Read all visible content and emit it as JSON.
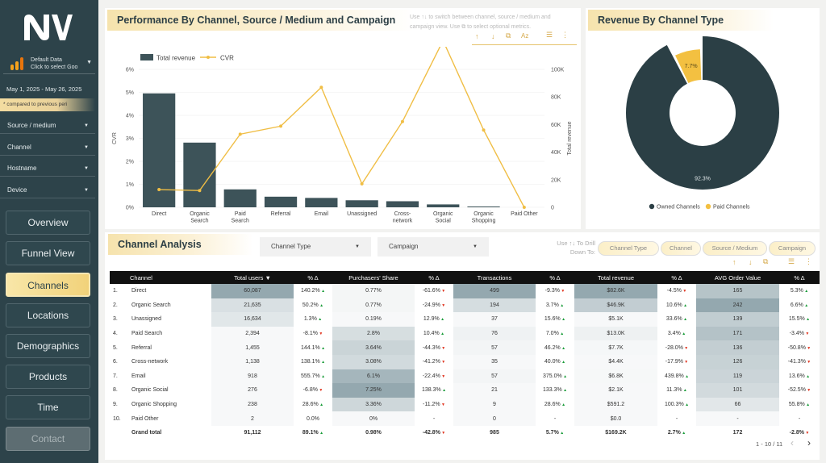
{
  "sidebar": {
    "datasource_line1": "Default Data",
    "datasource_line2": "Click to select Goo",
    "date_range": "May 1, 2025 - May 26, 2025",
    "compare_note": "* compared to previous peri",
    "filters": [
      "Source / medium",
      "Channel",
      "Hostname",
      "Device"
    ],
    "nav": [
      "Overview",
      "Funnel View",
      "Channels",
      "Locations",
      "Demographics",
      "Products",
      "Time",
      "Contact"
    ],
    "active_nav": "Channels"
  },
  "perf": {
    "title": "Performance By Channel, Source / Medium and Campaign",
    "hint_line1": "Use ↑↓ to switch between channel, source / medium and",
    "hint_line2": "campaign view. Use ⧉ to select optional metrics."
  },
  "revenue": {
    "title": "Revenue By Channel Type"
  },
  "analysis": {
    "title": "Channel Analysis",
    "dd_channel_type": "Channel Type",
    "dd_campaign": "Campaign",
    "drill_label_1": "Use ↑↓ To Drill",
    "drill_label_2": "Down To:",
    "chips": [
      "Channel Type",
      "Channel",
      "Source / Medium",
      "Campaign"
    ],
    "columns": [
      "Channel",
      "Total users ▼",
      "% Δ",
      "Purchasers' Share",
      "% Δ",
      "Transactions",
      "% Δ",
      "Total revenue",
      "% Δ",
      "AVG Order Value",
      "% Δ"
    ],
    "rows": [
      {
        "rank": "1.",
        "channel": "Direct",
        "users": "60,087",
        "users_d": "140.2%",
        "ps": "0.77%",
        "ps_d": "-61.6%",
        "tx": "499",
        "tx_d": "-9.3%",
        "rev": "$82.6K",
        "rev_d": "-4.5%",
        "aov": "165",
        "aov_d": "5.3%"
      },
      {
        "rank": "2.",
        "channel": "Organic Search",
        "users": "21,635",
        "users_d": "50.2%",
        "ps": "0.77%",
        "ps_d": "-24.9%",
        "tx": "194",
        "tx_d": "3.7%",
        "rev": "$46.9K",
        "rev_d": "10.6%",
        "aov": "242",
        "aov_d": "6.6%"
      },
      {
        "rank": "3.",
        "channel": "Unassigned",
        "users": "16,634",
        "users_d": "1.3%",
        "ps": "0.19%",
        "ps_d": "12.9%",
        "tx": "37",
        "tx_d": "15.6%",
        "rev": "$5.1K",
        "rev_d": "33.6%",
        "aov": "139",
        "aov_d": "15.5%"
      },
      {
        "rank": "4.",
        "channel": "Paid Search",
        "users": "2,394",
        "users_d": "-8.1%",
        "ps": "2.8%",
        "ps_d": "10.4%",
        "tx": "76",
        "tx_d": "7.0%",
        "rev": "$13.0K",
        "rev_d": "3.4%",
        "aov": "171",
        "aov_d": "-3.4%"
      },
      {
        "rank": "5.",
        "channel": "Referral",
        "users": "1,455",
        "users_d": "144.1%",
        "ps": "3.64%",
        "ps_d": "-44.3%",
        "tx": "57",
        "tx_d": "46.2%",
        "rev": "$7.7K",
        "rev_d": "-28.0%",
        "aov": "136",
        "aov_d": "-50.8%"
      },
      {
        "rank": "6.",
        "channel": "Cross-network",
        "users": "1,138",
        "users_d": "138.1%",
        "ps": "3.08%",
        "ps_d": "-41.2%",
        "tx": "35",
        "tx_d": "40.0%",
        "rev": "$4.4K",
        "rev_d": "-17.9%",
        "aov": "126",
        "aov_d": "-41.3%"
      },
      {
        "rank": "7.",
        "channel": "Email",
        "users": "918",
        "users_d": "555.7%",
        "ps": "6.1%",
        "ps_d": "-22.4%",
        "tx": "57",
        "tx_d": "375.0%",
        "rev": "$6.8K",
        "rev_d": "439.8%",
        "aov": "119",
        "aov_d": "13.6%"
      },
      {
        "rank": "8.",
        "channel": "Organic Social",
        "users": "276",
        "users_d": "-6.8%",
        "ps": "7.25%",
        "ps_d": "138.3%",
        "tx": "21",
        "tx_d": "133.3%",
        "rev": "$2.1K",
        "rev_d": "11.3%",
        "aov": "101",
        "aov_d": "-52.5%"
      },
      {
        "rank": "9.",
        "channel": "Organic Shopping",
        "users": "238",
        "users_d": "28.6%",
        "ps": "3.36%",
        "ps_d": "-11.2%",
        "tx": "9",
        "tx_d": "28.6%",
        "rev": "$591.2",
        "rev_d": "100.3%",
        "aov": "66",
        "aov_d": "55.8%"
      },
      {
        "rank": "10.",
        "channel": "Paid Other",
        "users": "2",
        "users_d": "0.0%",
        "ps": "0%",
        "ps_d": "-",
        "tx": "0",
        "tx_d": "-",
        "rev": "$0.0",
        "rev_d": "-",
        "aov": "-",
        "aov_d": "-"
      }
    ],
    "total": {
      "label": "Grand total",
      "users": "91,112",
      "users_d": "89.1%",
      "ps": "0.98%",
      "ps_d": "-42.8%",
      "tx": "985",
      "tx_d": "5.7%",
      "rev": "$169.2K",
      "rev_d": "2.7%",
      "aov": "172",
      "aov_d": "-2.8%"
    },
    "pagination": "1 - 10 / 11"
  },
  "chart_data": [
    {
      "type": "bar",
      "title": "Performance By Channel, Source / Medium and Campaign",
      "categories": [
        "Direct",
        "Organic Search",
        "Paid Search",
        "Referral",
        "Email",
        "Unassigned",
        "Cross-network",
        "Organic Social",
        "Organic Shopping",
        "Paid Other"
      ],
      "series": [
        {
          "name": "Total revenue",
          "type": "bar",
          "axis": "right",
          "values": [
            82600,
            46900,
            13000,
            7700,
            6800,
            5100,
            4400,
            2100,
            591.2,
            0
          ]
        },
        {
          "name": "CVR",
          "type": "line",
          "axis": "left",
          "values": [
            0.0077,
            0.0073,
            0.0318,
            0.0353,
            0.0522,
            0.0102,
            0.0373,
            0.0725,
            0.0336,
            0.0
          ]
        }
      ],
      "ylabel_left": "CVR",
      "ylabel_right": "Total revenue",
      "ylim_left": [
        0,
        0.06
      ],
      "ylim_right": [
        0,
        100000
      ],
      "yticks_left": [
        "0%",
        "1%",
        "2%",
        "3%",
        "4%",
        "5%",
        "6%"
      ],
      "yticks_right": [
        "0",
        "20K",
        "40K",
        "60K",
        "80K",
        "100K"
      ],
      "legend": "top-left",
      "colors": {
        "bar": "#3d5359",
        "line": "#f0be45"
      }
    },
    {
      "type": "pie",
      "title": "Revenue By Channel Type",
      "labels": [
        "Owned Channels",
        "Paid Channels"
      ],
      "values": [
        92.3,
        7.7
      ],
      "value_labels": [
        "92.3%",
        "7.7%"
      ],
      "legend": "bottom",
      "colors": [
        "#2b3f45",
        "#f3c041"
      ]
    }
  ]
}
